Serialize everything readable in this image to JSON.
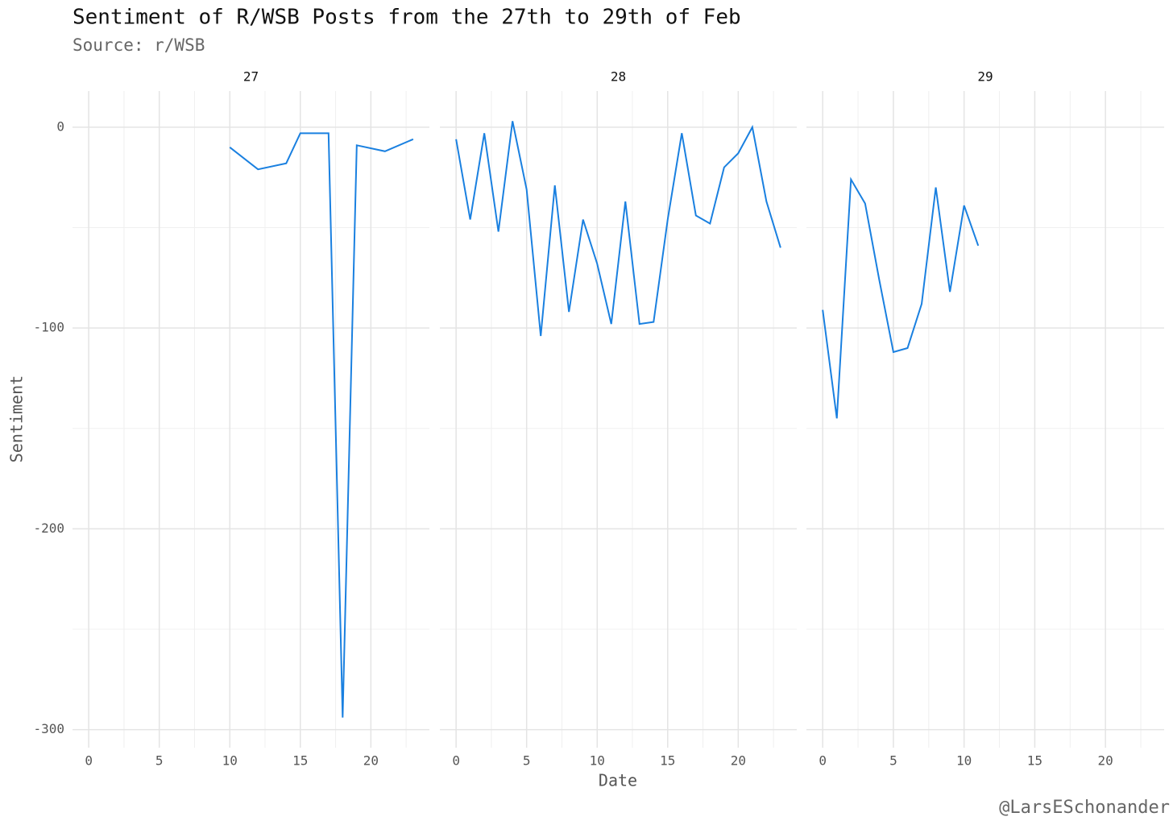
{
  "chart_data": {
    "type": "line",
    "title": "Sentiment of R/WSB Posts from the 27th to 29th of Feb",
    "subtitle": "Source: r/WSB",
    "x_label": "Date",
    "y_label": "Sentiment",
    "caption": "@LarsESchonander",
    "color": "#1a80e0",
    "xlim": [
      -1.15,
      24.15
    ],
    "xticks": [
      0,
      5,
      10,
      15,
      20
    ],
    "minor_xticks": [
      2.5,
      7.5,
      12.5,
      17.5,
      22.5
    ],
    "ylim": [
      -309,
      18
    ],
    "yticks": [
      -300,
      -200,
      -100,
      0
    ],
    "minor_yticks": [
      -250,
      -150,
      -50
    ],
    "grid": true,
    "facets": [
      {
        "name": "27",
        "x": [
          10,
          12,
          14,
          15,
          17,
          18,
          19,
          21,
          23
        ],
        "values": [
          -10,
          -21,
          -18,
          -3,
          -3,
          -294,
          -9,
          -12,
          -6
        ]
      },
      {
        "name": "28",
        "x": [
          0,
          1,
          2,
          3,
          4,
          5,
          6,
          7,
          8,
          9,
          10,
          11,
          12,
          13,
          14,
          15,
          16,
          17,
          18,
          19,
          20,
          21,
          22,
          23
        ],
        "values": [
          -6,
          -46,
          -3,
          -52,
          3,
          -31,
          -104,
          -29,
          -92,
          -46,
          -68,
          -98,
          -37,
          -98,
          -97,
          -46,
          -3,
          -44,
          -48,
          -20,
          -13,
          0,
          -37,
          -60
        ]
      },
      {
        "name": "29",
        "x": [
          0,
          1,
          2,
          3,
          4,
          5,
          6,
          7,
          8,
          9,
          10,
          11
        ],
        "values": [
          -91,
          -145,
          -26,
          -38,
          -76,
          -112,
          -110,
          -88,
          -30,
          -82,
          -39,
          -59
        ]
      }
    ]
  }
}
